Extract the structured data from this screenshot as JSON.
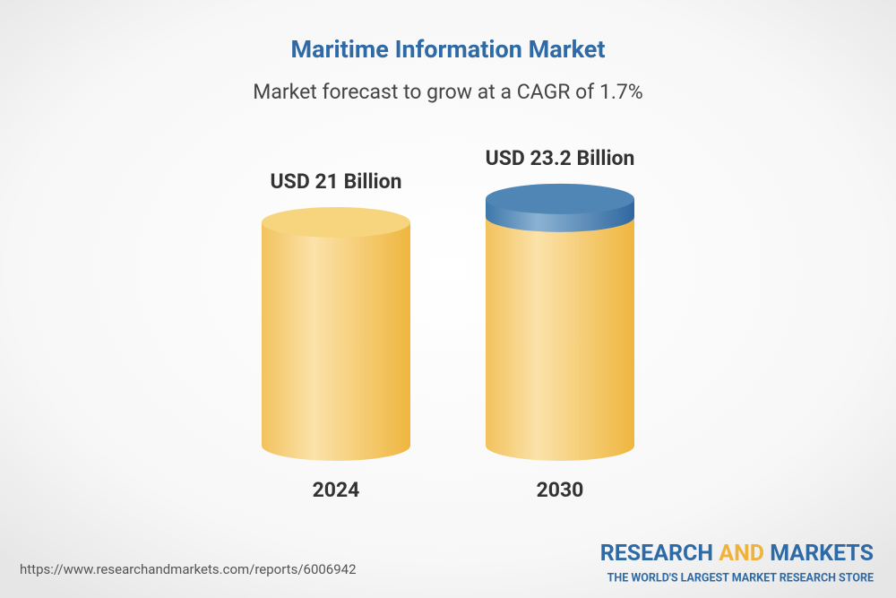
{
  "chart_data": {
    "type": "cylinder",
    "title": "Maritime Information Market",
    "subtitle": "Market forecast to grow at a CAGR of 1.7%",
    "categories": [
      "2024",
      "2030"
    ],
    "values": [
      21,
      23.2
    ],
    "value_labels": [
      "USD 21 Billion",
      "USD 23.2 Billion"
    ],
    "color": "#f3c159",
    "cap_colors": [
      "#f7d57f",
      "#4f86b5"
    ]
  },
  "footer": {
    "url": "https://www.researchandmarkets.com/reports/6006942",
    "brand": [
      "RESEARCH",
      "AND",
      "MARKETS"
    ],
    "tagline": "THE WORLD'S LARGEST MARKET RESEARCH STORE"
  }
}
